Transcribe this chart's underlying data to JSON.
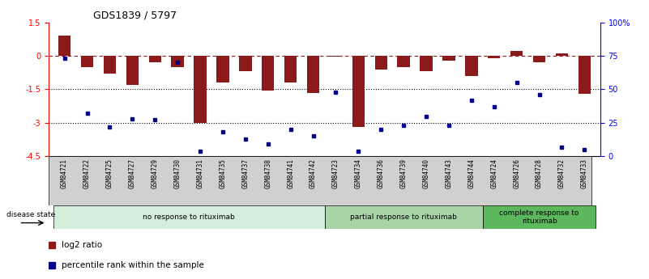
{
  "title": "GDS1839 / 5797",
  "samples": [
    "GSM84721",
    "GSM84722",
    "GSM84725",
    "GSM84727",
    "GSM84729",
    "GSM84730",
    "GSM84731",
    "GSM84735",
    "GSM84737",
    "GSM84738",
    "GSM84741",
    "GSM84742",
    "GSM84723",
    "GSM84734",
    "GSM84736",
    "GSM84739",
    "GSM84740",
    "GSM84743",
    "GSM84744",
    "GSM84724",
    "GSM84726",
    "GSM84728",
    "GSM84732",
    "GSM84733"
  ],
  "log2_ratio": [
    0.9,
    -0.5,
    -0.8,
    -1.3,
    -0.3,
    -0.5,
    -3.0,
    -1.2,
    -0.7,
    -1.55,
    -1.2,
    -1.65,
    -0.05,
    -3.2,
    -0.6,
    -0.5,
    -0.7,
    -0.2,
    -0.9,
    -0.1,
    0.2,
    -0.3,
    0.1,
    -1.7
  ],
  "percentile_rank": [
    73,
    32,
    22,
    28,
    27,
    70,
    4,
    18,
    13,
    9,
    20,
    15,
    48,
    4,
    20,
    23,
    30,
    23,
    42,
    37,
    55,
    46,
    7,
    5
  ],
  "groups": [
    {
      "label": "no response to rituximab",
      "start": 0,
      "end": 12,
      "color": "#d4edda"
    },
    {
      "label": "partial response to rituximab",
      "start": 12,
      "end": 19,
      "color": "#a8d5a8"
    },
    {
      "label": "complete response to\nrituximab",
      "start": 19,
      "end": 24,
      "color": "#5cb85c"
    }
  ],
  "bar_color": "#8b1a1a",
  "dot_color": "#00008b",
  "ylim_left": [
    -4.5,
    1.5
  ],
  "ylim_right": [
    0,
    100
  ],
  "yticks_left": [
    1.5,
    0.0,
    -1.5,
    -3.0,
    -4.5
  ],
  "ytick_labels_left": [
    "1.5",
    "0",
    "-1.5",
    "-3",
    "-4.5"
  ],
  "yticks_right": [
    100,
    75,
    50,
    25,
    0
  ],
  "ytick_labels_right": [
    "100%",
    "75",
    "50",
    "25",
    "0"
  ],
  "dotted_lines": [
    -1.5,
    -3.0
  ],
  "legend_items": [
    {
      "label": "log2 ratio",
      "color": "#8b1a1a",
      "marker": "s"
    },
    {
      "label": "percentile rank within the sample",
      "color": "#00008b",
      "marker": "s"
    }
  ],
  "disease_state_label": "disease state"
}
